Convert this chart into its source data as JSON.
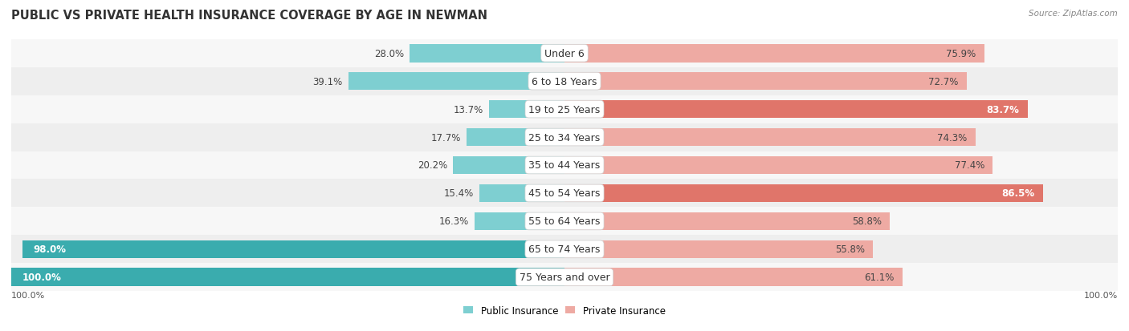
{
  "title": "PUBLIC VS PRIVATE HEALTH INSURANCE COVERAGE BY AGE IN NEWMAN",
  "source": "Source: ZipAtlas.com",
  "categories": [
    "Under 6",
    "6 to 18 Years",
    "19 to 25 Years",
    "25 to 34 Years",
    "35 to 44 Years",
    "45 to 54 Years",
    "55 to 64 Years",
    "65 to 74 Years",
    "75 Years and over"
  ],
  "public_values": [
    28.0,
    39.1,
    13.7,
    17.7,
    20.2,
    15.4,
    16.3,
    98.0,
    100.0
  ],
  "private_values": [
    75.9,
    72.7,
    83.7,
    74.3,
    77.4,
    86.5,
    58.8,
    55.8,
    61.1
  ],
  "public_color_dark": "#3aacae",
  "public_color_light": "#7ecfd1",
  "private_color_dark": "#e0756a",
  "private_color_light": "#eeaaa3",
  "row_bg_light": "#f7f7f7",
  "row_bg_dark": "#eeeeee",
  "max_value": 100.0,
  "legend_public": "Public Insurance",
  "legend_private": "Private Insurance",
  "title_fontsize": 10.5,
  "source_fontsize": 7.5,
  "value_fontsize": 8.5,
  "category_fontsize": 9,
  "xlabel": "100.0%"
}
